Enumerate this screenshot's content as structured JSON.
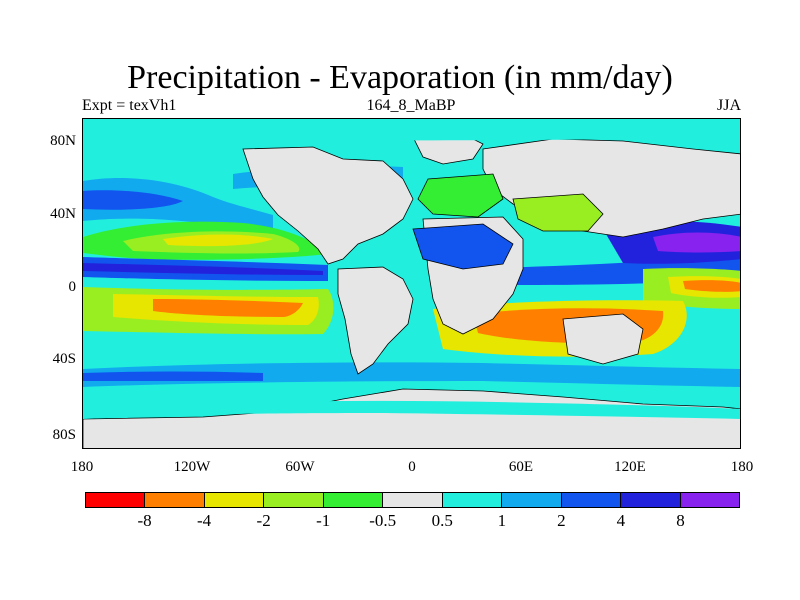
{
  "title": "Precipitation - Evaporation (in mm/day)",
  "subtitle_left": "Expt = texVh1",
  "subtitle_center": "164_8_MaBP",
  "subtitle_right": "JJA",
  "y_ticks": [
    "80N",
    "40N",
    "0",
    "40S",
    "80S"
  ],
  "x_ticks": [
    "180",
    "120W",
    "60W",
    "0",
    "60E",
    "120E",
    "180"
  ],
  "colorbar": {
    "colors": [
      "#ff0000",
      "#ff7f00",
      "#e6e600",
      "#99ee22",
      "#33ee33",
      "#e6e6e6",
      "#22eedd",
      "#11aaee",
      "#1155ee",
      "#2222dd",
      "#8822ee"
    ],
    "labels": [
      "-8",
      "-4",
      "-2",
      "-1",
      "-0.5",
      "0.5",
      "1",
      "2",
      "4",
      "8"
    ]
  }
}
